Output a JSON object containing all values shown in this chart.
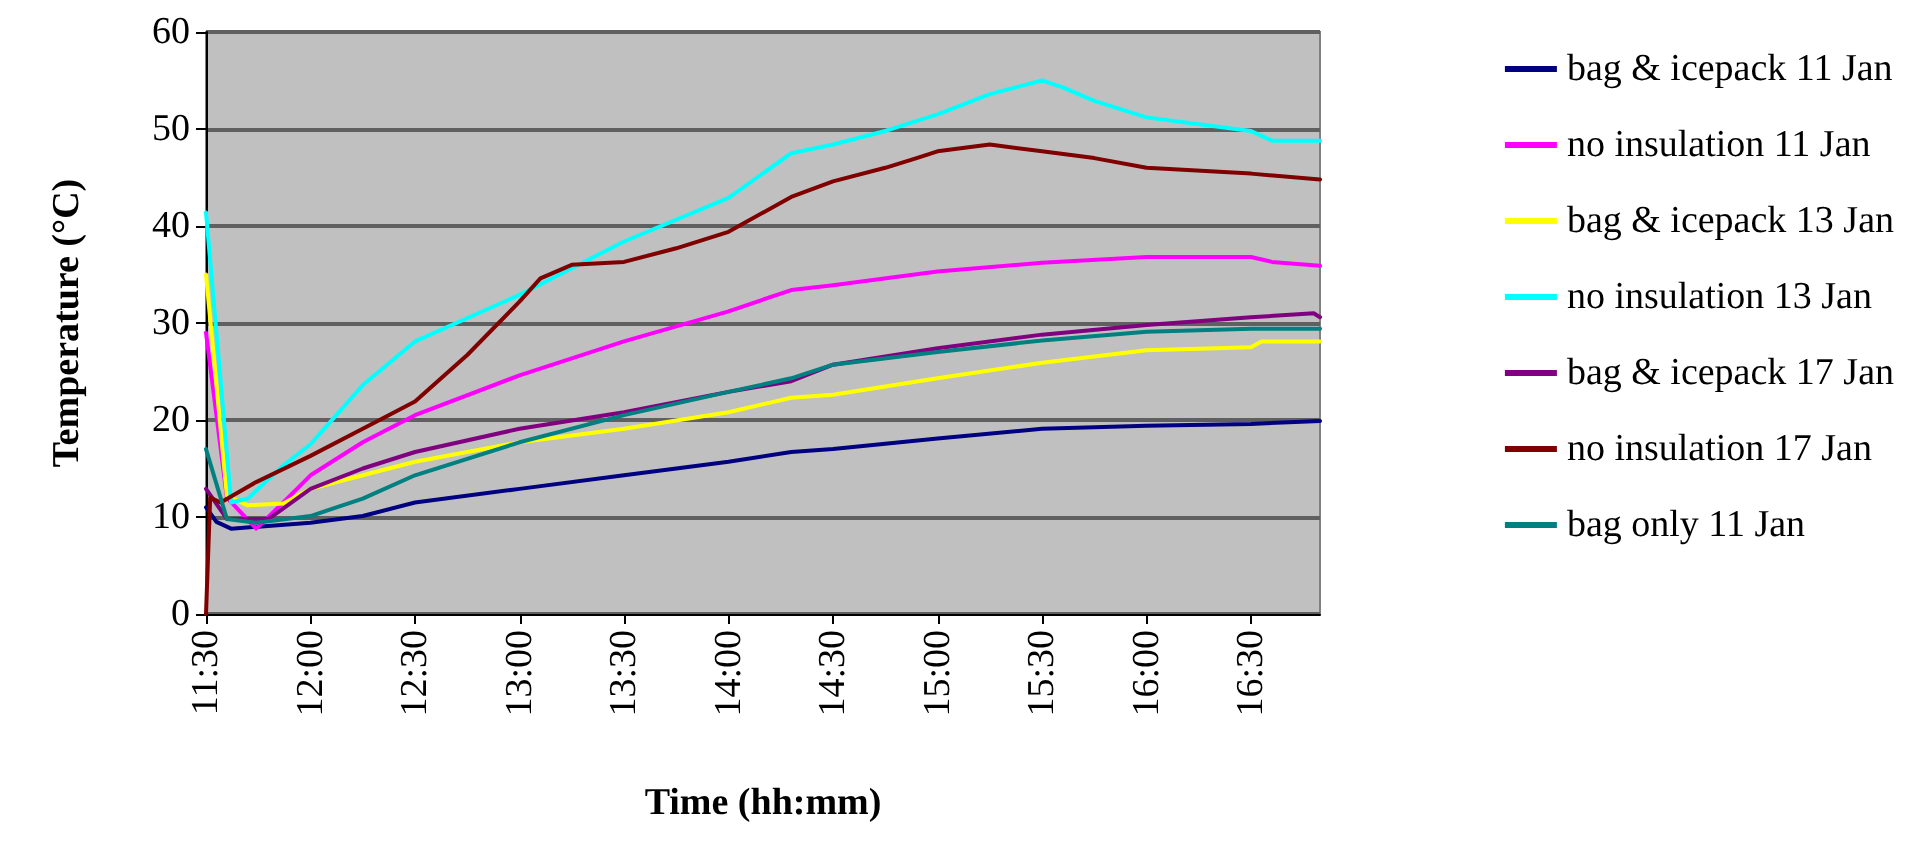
{
  "chart_data": {
    "type": "line",
    "xlabel": "Time (hh:mm)",
    "ylabel": "Temperature (°C)",
    "xlim": [
      11.5,
      16.83
    ],
    "ylim": [
      0,
      60
    ],
    "yticks": [
      0,
      10,
      20,
      30,
      40,
      50,
      60
    ],
    "xticks": [
      {
        "value": 11.5,
        "label": "11:30"
      },
      {
        "value": 12,
        "label": "12:00"
      },
      {
        "value": 12.5,
        "label": "12:30"
      },
      {
        "value": 13,
        "label": "13:00"
      },
      {
        "value": 13.5,
        "label": "13:30"
      },
      {
        "value": 14,
        "label": "14:00"
      },
      {
        "value": 14.5,
        "label": "14:30"
      },
      {
        "value": 15,
        "label": "15:00"
      },
      {
        "value": 15.5,
        "label": "15:30"
      },
      {
        "value": 16,
        "label": "16:00"
      },
      {
        "value": 16.5,
        "label": "16:30"
      }
    ],
    "grid": "y",
    "legend": "right",
    "marker": "none",
    "line_style": "solid",
    "series": [
      {
        "name": "bag & icepack 11 Jan",
        "color": "#000080",
        "x": [
          11.5,
          11.55,
          11.62,
          11.75,
          12,
          12.25,
          12.5,
          13,
          13.5,
          14,
          14.3,
          14.5,
          15,
          15.5,
          16,
          16.5,
          16.83
        ],
        "values": [
          11,
          9.5,
          8.8,
          9,
          9.4,
          10.1,
          11.5,
          12.9,
          14.3,
          15.7,
          16.7,
          17,
          18.1,
          19.1,
          19.4,
          19.6,
          19.9
        ]
      },
      {
        "name": "no insulation 11 Jan",
        "color": "#ff00ff",
        "x": [
          11.5,
          11.6,
          11.74,
          11.87,
          12,
          12.25,
          12.5,
          13,
          13.5,
          14,
          14.3,
          14.5,
          15,
          15.5,
          16,
          16.5,
          16.6,
          16.83
        ],
        "values": [
          29,
          12,
          8.8,
          11.5,
          14.3,
          17.7,
          20.5,
          24.6,
          28.1,
          31.2,
          33.4,
          33.9,
          35.3,
          36.2,
          36.8,
          36.8,
          36.3,
          35.9
        ]
      },
      {
        "name": "bag & icepack 13 Jan",
        "color": "#ffff00",
        "x": [
          11.5,
          11.6,
          11.7,
          11.87,
          12,
          12.25,
          12.5,
          13,
          13.5,
          14,
          14.3,
          14.5,
          15,
          15.5,
          16,
          16.5,
          16.55,
          16.83
        ],
        "values": [
          35,
          12.2,
          11.2,
          11.4,
          12.9,
          14.3,
          15.7,
          17.7,
          19.1,
          20.8,
          22.3,
          22.6,
          24.3,
          25.9,
          27.2,
          27.5,
          28.1,
          28.1
        ]
      },
      {
        "name": "no insulation 13 Jan",
        "color": "#00ffff",
        "x": [
          11.5,
          11.62,
          11.7,
          11.87,
          12,
          12.25,
          12.5,
          13,
          13.5,
          14,
          14.3,
          14.5,
          14.75,
          15,
          15.25,
          15.5,
          15.6,
          15.75,
          16,
          16.25,
          16.5,
          16.6,
          16.83
        ],
        "values": [
          41.4,
          11.5,
          11.9,
          15.3,
          17.5,
          23.6,
          28.1,
          32.9,
          38.4,
          42.9,
          47.5,
          48.4,
          49.8,
          51.5,
          53.6,
          55,
          54.3,
          52.9,
          51.2,
          50.5,
          49.8,
          48.8,
          48.8
        ]
      },
      {
        "name": "bag & icepack 17 Jan",
        "color": "#800080",
        "x": [
          11.5,
          11.6,
          11.8,
          12,
          12.25,
          12.5,
          13,
          13.5,
          14,
          14.3,
          14.5,
          15,
          15.5,
          16,
          16.5,
          16.8,
          16.83
        ],
        "values": [
          12.9,
          9.8,
          9.8,
          12.9,
          15,
          16.7,
          19.1,
          20.8,
          22.9,
          24,
          25.7,
          27.4,
          28.8,
          29.8,
          30.6,
          31,
          30.6
        ]
      },
      {
        "name": "no insulation 17 Jan",
        "color": "#800000",
        "x": [
          11.5,
          11.52,
          11.57,
          11.74,
          12,
          12.25,
          12.5,
          12.75,
          13,
          13.1,
          13.25,
          13.5,
          13.75,
          14,
          14.3,
          14.5,
          14.75,
          14.9,
          15,
          15.25,
          15.5,
          15.75,
          16,
          16.5,
          16.83
        ],
        "values": [
          0,
          12,
          11.5,
          13.6,
          16.3,
          19.1,
          21.9,
          26.7,
          32.2,
          34.6,
          36,
          36.3,
          37.7,
          39.4,
          43,
          44.6,
          46,
          47,
          47.7,
          48.4,
          47.7,
          47,
          46,
          45.4,
          44.8
        ]
      },
      {
        "name": "bag only 11 Jan",
        "color": "#008080",
        "x": [
          11.5,
          11.6,
          11.74,
          12,
          12.25,
          12.5,
          13,
          13.5,
          14,
          14.3,
          14.5,
          15,
          15.5,
          16,
          16.5,
          16.83
        ],
        "values": [
          17,
          9.8,
          9.4,
          10.1,
          11.9,
          14.3,
          17.7,
          20.5,
          22.9,
          24.3,
          25.7,
          27,
          28.2,
          29.1,
          29.4,
          29.4
        ]
      }
    ]
  }
}
